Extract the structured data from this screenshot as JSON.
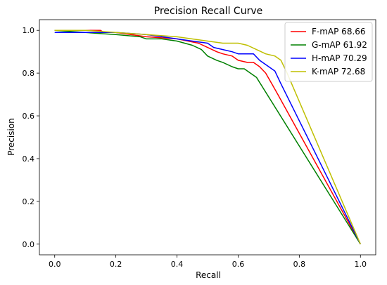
{
  "chart_data": {
    "type": "line",
    "title": "Precision Recall Curve",
    "xlabel": "Recall",
    "ylabel": "Precision",
    "xlim": [
      -0.05,
      1.05
    ],
    "ylim": [
      -0.05,
      1.05
    ],
    "xticks": [
      "0.0",
      "0.2",
      "0.4",
      "0.6",
      "0.8",
      "1.0"
    ],
    "yticks": [
      "0.0",
      "0.2",
      "0.4",
      "0.6",
      "0.8",
      "1.0"
    ],
    "xtick_values": [
      0,
      0.2,
      0.4,
      0.6,
      0.8,
      1.0
    ],
    "ytick_values": [
      0,
      0.2,
      0.4,
      0.6,
      0.8,
      1.0
    ],
    "grid": false,
    "legend_position": "top-right",
    "series": [
      {
        "name": "F-mAP 68.66",
        "color": "#ff0000",
        "x": [
          0.0,
          0.1,
          0.15,
          0.16,
          0.2,
          0.3,
          0.4,
          0.47,
          0.5,
          0.53,
          0.55,
          0.58,
          0.6,
          0.63,
          0.65,
          0.67,
          0.69,
          0.71,
          0.73,
          1.0
        ],
        "y": [
          1.0,
          1.0,
          1.0,
          0.99,
          0.99,
          0.97,
          0.96,
          0.94,
          0.92,
          0.9,
          0.89,
          0.88,
          0.86,
          0.85,
          0.85,
          0.83,
          0.8,
          0.75,
          0.7,
          0.0
        ]
      },
      {
        "name": "G-mAP 61.92",
        "color": "#008000",
        "x": [
          0.0,
          0.1,
          0.2,
          0.28,
          0.3,
          0.35,
          0.4,
          0.45,
          0.48,
          0.5,
          0.53,
          0.55,
          0.58,
          0.6,
          0.62,
          0.64,
          0.66,
          1.0
        ],
        "y": [
          1.0,
          0.99,
          0.98,
          0.97,
          0.96,
          0.96,
          0.95,
          0.93,
          0.91,
          0.88,
          0.86,
          0.85,
          0.83,
          0.82,
          0.82,
          0.8,
          0.78,
          0.0
        ]
      },
      {
        "name": "H-mAP 70.29",
        "color": "#0000ff",
        "x": [
          0.0,
          0.1,
          0.2,
          0.3,
          0.4,
          0.45,
          0.5,
          0.52,
          0.55,
          0.58,
          0.6,
          0.62,
          0.65,
          0.67,
          0.7,
          0.72,
          0.74,
          1.0
        ],
        "y": [
          0.99,
          0.99,
          0.99,
          0.98,
          0.96,
          0.95,
          0.94,
          0.92,
          0.91,
          0.9,
          0.89,
          0.89,
          0.89,
          0.86,
          0.83,
          0.81,
          0.75,
          0.0
        ]
      },
      {
        "name": "K-mAP 72.68",
        "color": "#bfbf00",
        "x": [
          0.0,
          0.1,
          0.2,
          0.3,
          0.4,
          0.5,
          0.55,
          0.6,
          0.63,
          0.66,
          0.69,
          0.72,
          0.74,
          0.76,
          1.0
        ],
        "y": [
          1.0,
          1.0,
          0.99,
          0.98,
          0.97,
          0.95,
          0.94,
          0.94,
          0.93,
          0.91,
          0.89,
          0.88,
          0.86,
          0.8,
          0.0
        ]
      }
    ]
  }
}
